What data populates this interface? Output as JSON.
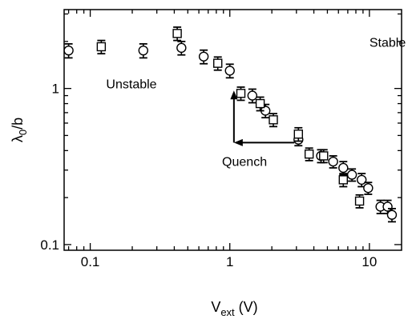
{
  "chart_data": {
    "type": "scatter",
    "xscale": "log",
    "yscale": "log",
    "xlim": [
      0.065,
      17
    ],
    "ylim": [
      0.092,
      3.2
    ],
    "xticks": [
      {
        "value": 0.1,
        "label": "0.1"
      },
      {
        "value": 1,
        "label": "1"
      },
      {
        "value": 10,
        "label": "10"
      }
    ],
    "yticks": [
      {
        "value": 0.1,
        "label": "0.1"
      },
      {
        "value": 1,
        "label": "1"
      }
    ],
    "xlabel": {
      "main": "V",
      "sub": "ext",
      "tail": " (V)"
    },
    "ylabel": {
      "main": "λ",
      "sub": "0",
      "tail": "/b"
    },
    "grid": false,
    "series": [
      {
        "marker": "circle",
        "points": [
          {
            "x": 0.07,
            "y": 1.75,
            "err": 0.18
          },
          {
            "x": 0.24,
            "y": 1.75,
            "err": 0.18
          },
          {
            "x": 0.45,
            "y": 1.82,
            "err": 0.18
          },
          {
            "x": 0.65,
            "y": 1.6,
            "err": 0.16
          },
          {
            "x": 1.0,
            "y": 1.3,
            "err": 0.13
          },
          {
            "x": 1.45,
            "y": 0.9,
            "err": 0.09
          },
          {
            "x": 1.8,
            "y": 0.72,
            "err": 0.07
          },
          {
            "x": 3.1,
            "y": 0.47,
            "err": 0.04
          },
          {
            "x": 4.5,
            "y": 0.37,
            "err": 0.035
          },
          {
            "x": 5.5,
            "y": 0.34,
            "err": 0.03
          },
          {
            "x": 6.5,
            "y": 0.31,
            "err": 0.03
          },
          {
            "x": 7.5,
            "y": 0.28,
            "err": 0.025
          },
          {
            "x": 8.8,
            "y": 0.26,
            "err": 0.025
          },
          {
            "x": 9.8,
            "y": 0.23,
            "err": 0.02
          },
          {
            "x": 12.0,
            "y": 0.175,
            "err": 0.017
          },
          {
            "x": 13.5,
            "y": 0.175,
            "err": 0.017
          },
          {
            "x": 14.5,
            "y": 0.155,
            "err": 0.015
          }
        ]
      },
      {
        "marker": "square",
        "points": [
          {
            "x": 0.12,
            "y": 1.85,
            "err": 0.18
          },
          {
            "x": 0.42,
            "y": 2.25,
            "err": 0.22
          },
          {
            "x": 0.82,
            "y": 1.45,
            "err": 0.14
          },
          {
            "x": 1.2,
            "y": 0.93,
            "err": 0.09
          },
          {
            "x": 1.65,
            "y": 0.8,
            "err": 0.08
          },
          {
            "x": 2.05,
            "y": 0.63,
            "err": 0.06
          },
          {
            "x": 3.1,
            "y": 0.51,
            "err": 0.05
          },
          {
            "x": 3.7,
            "y": 0.38,
            "err": 0.035
          },
          {
            "x": 4.7,
            "y": 0.37,
            "err": 0.035
          },
          {
            "x": 6.5,
            "y": 0.26,
            "err": 0.025
          },
          {
            "x": 8.5,
            "y": 0.19,
            "err": 0.018
          }
        ]
      }
    ],
    "annotations": [
      {
        "text": "Unstable",
        "x": 0.13,
        "y": 1.0
      },
      {
        "text": "Stable",
        "x": 10.0,
        "y": 1.85
      },
      {
        "text": "Quench",
        "x": 0.88,
        "y": 0.32
      }
    ],
    "arrows": [
      {
        "from": {
          "x": 2.9,
          "y": 0.45
        },
        "to": {
          "x": 1.07,
          "y": 0.45
        }
      },
      {
        "from": {
          "x": 1.07,
          "y": 0.45
        },
        "to": {
          "x": 1.07,
          "y": 0.97
        }
      }
    ]
  }
}
